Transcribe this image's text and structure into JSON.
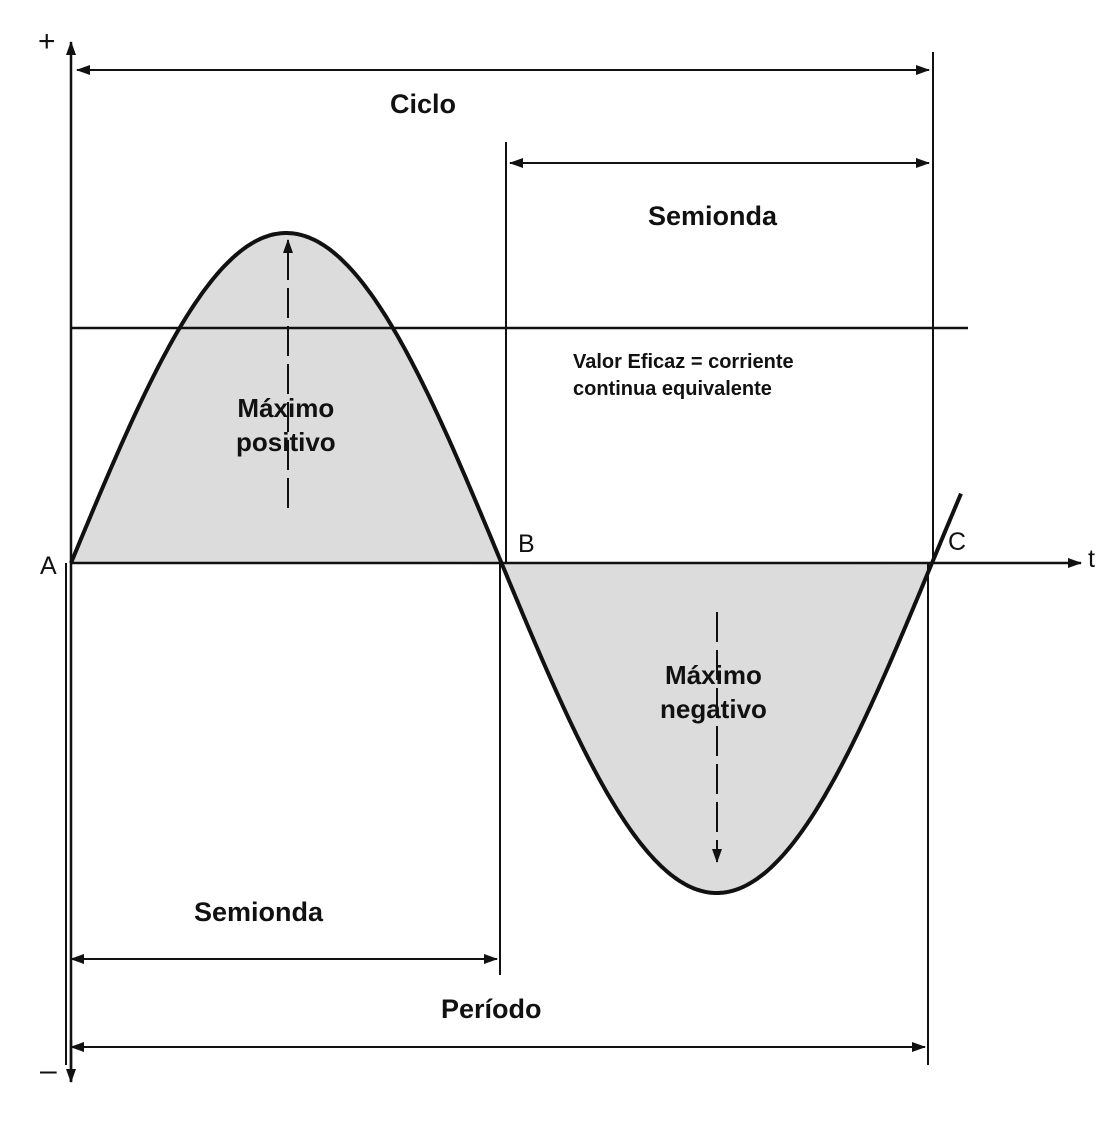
{
  "axis": {
    "plus_sign": "+",
    "minus_sign": "–",
    "time_label": "t"
  },
  "points": {
    "a": "A",
    "b": "B",
    "c": "C"
  },
  "labels": {
    "cycle": "Ciclo",
    "half_wave_top": "Semionda",
    "half_wave_bottom": "Semionda",
    "period": "Período",
    "rms_line1": "Valor Eficaz = corriente",
    "rms_line2": "continua equivalente",
    "max_positive_line1": "Máximo",
    "max_positive_line2": "positivo",
    "max_negative_line1": "Máximo",
    "max_negative_line2": "negativo"
  },
  "colors": {
    "ink": "#111111",
    "fill": "#dcdcdc"
  }
}
